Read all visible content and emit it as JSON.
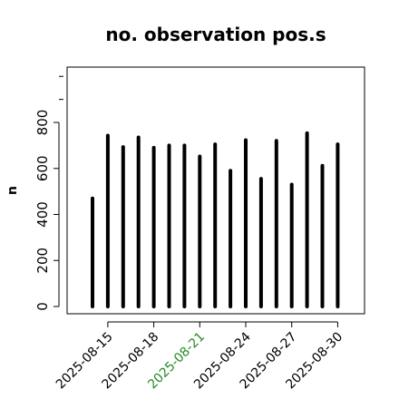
{
  "chart_data": {
    "type": "bar",
    "title": "no. observation pos.s",
    "xlabel": "",
    "ylabel": "n",
    "x": [
      "2025-08-14",
      "2025-08-15",
      "2025-08-16",
      "2025-08-17",
      "2025-08-18",
      "2025-08-19",
      "2025-08-20",
      "2025-08-21",
      "2025-08-22",
      "2025-08-23",
      "2025-08-24",
      "2025-08-25",
      "2025-08-26",
      "2025-08-27",
      "2025-08-28",
      "2025-08-29",
      "2025-08-30"
    ],
    "values": [
      470,
      743,
      693,
      735,
      690,
      700,
      700,
      652,
      705,
      590,
      723,
      555,
      720,
      530,
      753,
      612,
      705
    ],
    "ylim": [
      0,
      1050
    ],
    "yticks": [
      0,
      200,
      400,
      600,
      800
    ],
    "xtick_labels": [
      {
        "label": "2025-08-15",
        "color": "#000000"
      },
      {
        "label": "2025-08-18",
        "color": "#000000"
      },
      {
        "label": "2025-08-21",
        "color": "#228B22"
      },
      {
        "label": "2025-08-24",
        "color": "#000000"
      },
      {
        "label": "2025-08-27",
        "color": "#000000"
      },
      {
        "label": "2025-08-30",
        "color": "#000000"
      }
    ],
    "bar_color": "#000000",
    "grid": false
  }
}
